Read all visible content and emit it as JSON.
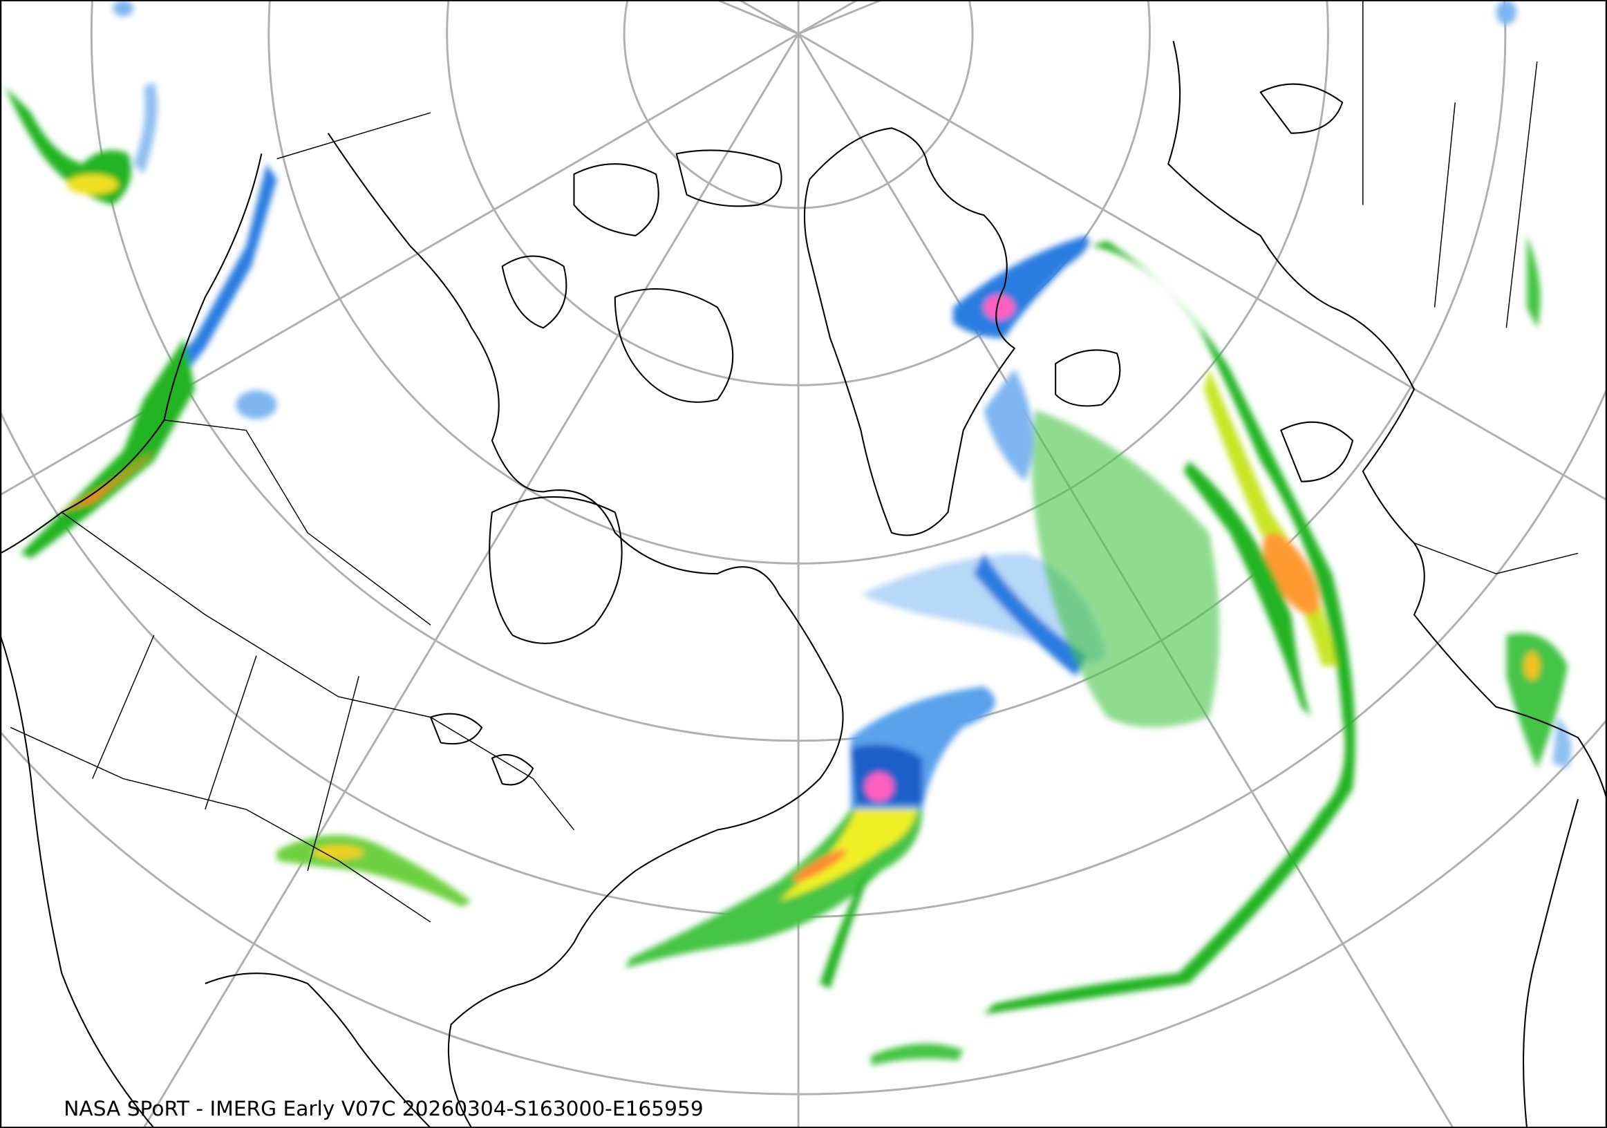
{
  "caption": "NASA SPoRT - IMERG Early V07C 20260304-S163000-E165959"
}
